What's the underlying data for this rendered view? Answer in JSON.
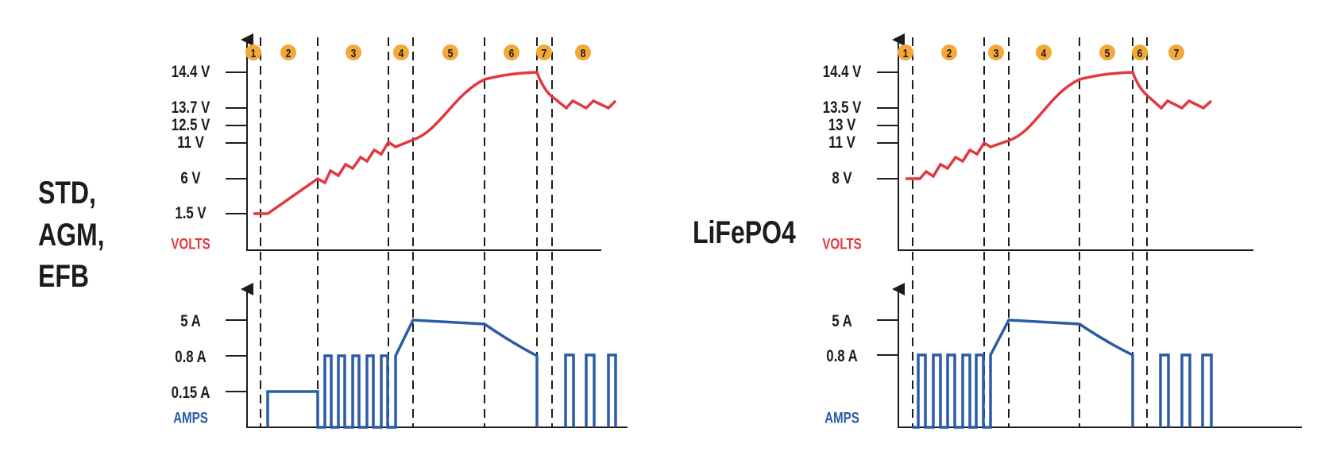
{
  "colors": {
    "volts": "#e2383f",
    "amps": "#2b5ca6",
    "badge": "#f3a83a",
    "ink": "#1c1c1c"
  },
  "chart_data": [
    {
      "type": "line",
      "title": "STD, AGM, EFB",
      "title_lines": [
        "STD,",
        "AGM,",
        "EFB"
      ],
      "stages": [
        "1",
        "2",
        "3",
        "4",
        "5",
        "6",
        "7",
        "8"
      ],
      "volts": {
        "label": "VOLTS",
        "tick_labels": [
          "14.4 V",
          "13.7 V",
          "12.5 V",
          "11 V",
          "6 V",
          "1.5 V"
        ],
        "tick_values": [
          14.4,
          13.7,
          12.5,
          11,
          6,
          1.5
        ]
      },
      "amps": {
        "label": "AMPS",
        "tick_labels": [
          "5 A",
          "0.8 A",
          "0.15 A"
        ],
        "tick_values": [
          5,
          0.8,
          0.15
        ]
      },
      "grid": false
    },
    {
      "type": "line",
      "title": "LiFePO4",
      "title_lines": [
        "LiFePO4"
      ],
      "stages": [
        "1",
        "2",
        "3",
        "4",
        "5",
        "6",
        "7"
      ],
      "volts": {
        "label": "VOLTS",
        "tick_labels": [
          "14.4 V",
          "13.5 V",
          "13 V",
          "11 V",
          "8 V"
        ],
        "tick_values": [
          14.4,
          13.5,
          13,
          11,
          8
        ]
      },
      "amps": {
        "label": "AMPS",
        "tick_labels": [
          "5 A",
          "0.8 A"
        ],
        "tick_values": [
          5,
          0.8
        ]
      },
      "grid": false
    }
  ]
}
